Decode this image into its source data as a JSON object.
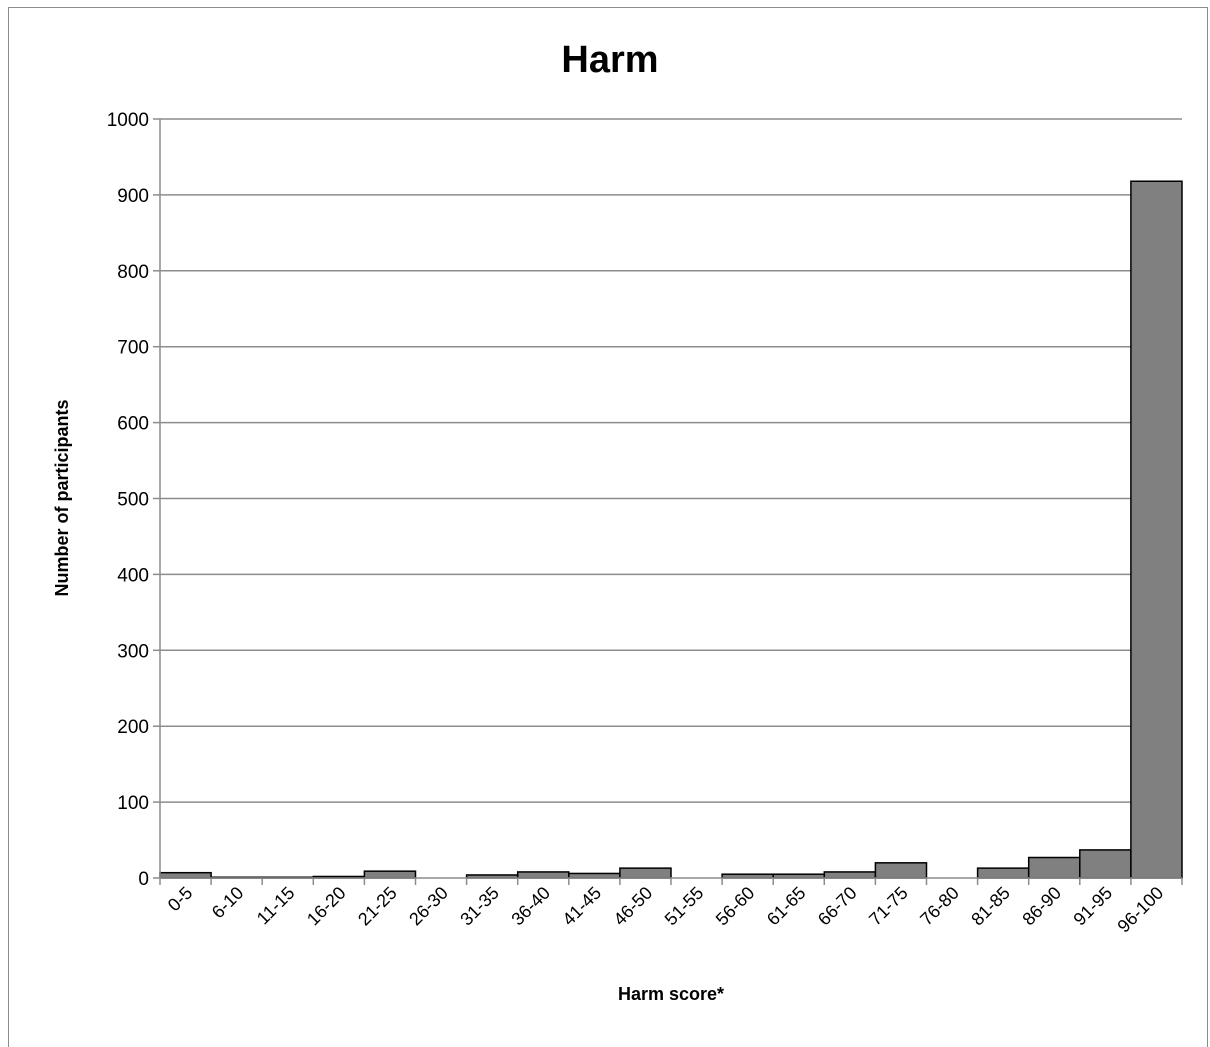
{
  "chart_data": {
    "type": "bar",
    "title": "Harm",
    "xlabel": "Harm score*",
    "ylabel": "Number of participants",
    "ylim": [
      0,
      1000
    ],
    "yticks": [
      "0",
      "100",
      "200",
      "300",
      "400",
      "500",
      "600",
      "700",
      "800",
      "900",
      "1000"
    ],
    "grid": true,
    "bar_color": "#808080",
    "categories": [
      "0-5",
      "6-10",
      "11-15",
      "16-20",
      "21-25",
      "26-30",
      "31-35",
      "36-40",
      "41-45",
      "46-50",
      "51-55",
      "56-60",
      "61-65",
      "66-70",
      "71-75",
      "76-80",
      "81-85",
      "86-90",
      "91-95",
      "96-100"
    ],
    "values": [
      7,
      1,
      1,
      2,
      9,
      0,
      4,
      8,
      6,
      13,
      0,
      5,
      5,
      8,
      20,
      0,
      13,
      27,
      37,
      918
    ]
  }
}
